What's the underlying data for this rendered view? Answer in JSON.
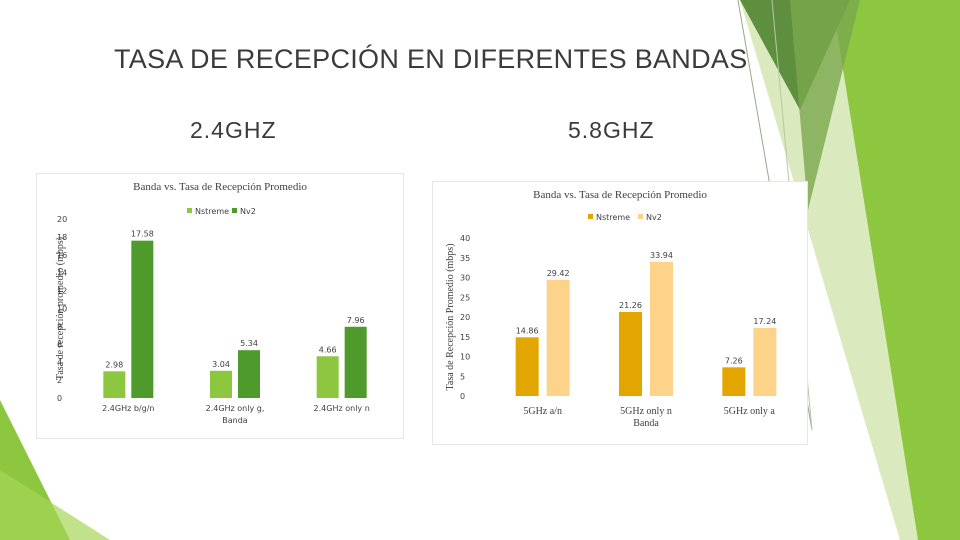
{
  "slide": {
    "title": "TASA DE RECEPCIÓN EN DIFERENTES BANDAS",
    "heading_left": "2.4GHZ",
    "heading_right": "5.8GHZ"
  },
  "colors": {
    "left_series1": "#8dc63f",
    "left_series2": "#4e9a2a",
    "right_series1": "#e3a600",
    "right_series2": "#fdd38a",
    "deco_dark": "#5e8f3e",
    "deco_bright": "#8dc63f",
    "deco_light": "#c9df9e"
  },
  "chart_data": [
    {
      "type": "bar",
      "title": "Banda vs. Tasa de Recepción Promedio",
      "xlabel": "",
      "ylabel": "Tasa de recepción promedio (mbps)",
      "categories": [
        "2.4GHz b/g/n",
        "2.4GHz only g, Banda",
        "2.4GHz only n"
      ],
      "series": [
        {
          "name": "Nstreme",
          "values": [
            2.98,
            3.04,
            4.66
          ]
        },
        {
          "name": "Nv2",
          "values": [
            17.58,
            5.34,
            7.96
          ]
        }
      ],
      "ylim": [
        0,
        20
      ],
      "yticks": [
        0,
        2,
        4,
        6,
        8,
        10,
        12,
        14,
        16,
        18,
        20
      ],
      "grid": false,
      "legend": "top-center"
    },
    {
      "type": "bar",
      "title": "Banda vs. Tasa de Recepción Promedio",
      "xlabel": "",
      "ylabel": "Tasa de Recepción Promedio (mbps)",
      "categories": [
        "5GHz a/n",
        "5GHz only n Banda",
        "5GHz only a"
      ],
      "series": [
        {
          "name": "Nstreme",
          "values": [
            14.86,
            21.26,
            7.26
          ]
        },
        {
          "name": "Nv2",
          "values": [
            29.42,
            33.94,
            17.24
          ]
        }
      ],
      "ylim": [
        0,
        40
      ],
      "yticks": [
        0,
        5,
        10,
        15,
        20,
        25,
        30,
        35,
        40
      ],
      "grid": false,
      "legend": "top-right"
    }
  ]
}
